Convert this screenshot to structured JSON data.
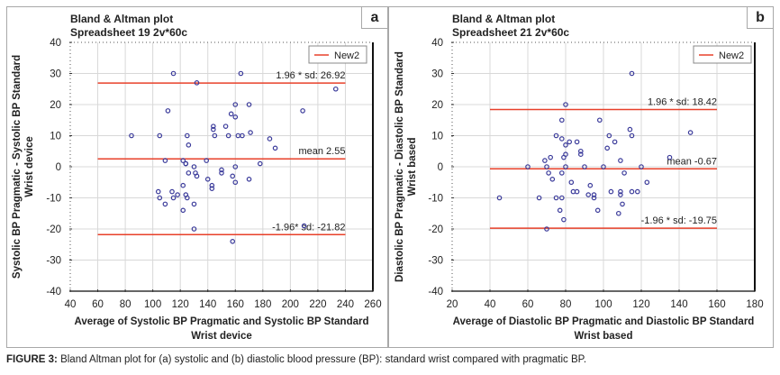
{
  "caption": {
    "label": "FIGURE 3:",
    "text": " Bland Altman plot for (a) systolic and (b) diastolic blood pressure (BP): standard wrist compared with pragmatic BP."
  },
  "chart_data": [
    {
      "type": "scatter",
      "panel_letter": "a",
      "title": "Bland & Altman plot",
      "subtitle": "Spreadsheet 19 2v*60c",
      "xlabel": "Average of Systolic BP Pragmatic and Systolic BP Standard",
      "xlabel2": "Wrist device",
      "ylabel": "Systolic BP Pragmatic - Systolic BP Standard",
      "ylabel2": "Wrist device",
      "xlim": [
        40,
        260
      ],
      "ylim": [
        -40,
        40
      ],
      "xticks": [
        40,
        60,
        80,
        100,
        120,
        140,
        160,
        180,
        200,
        220,
        240,
        260
      ],
      "yticks": [
        -40,
        -30,
        -20,
        -10,
        0,
        10,
        20,
        30,
        40
      ],
      "grid": true,
      "legend": {
        "entries": [
          "New2"
        ],
        "placement": "top-right"
      },
      "line_x_range": [
        60,
        240
      ],
      "reference_lines": [
        {
          "name": "upper-limit",
          "y": 26.92,
          "label": "1.96 * sd: 26.92"
        },
        {
          "name": "mean",
          "y": 2.55,
          "label": "mean 2.55"
        },
        {
          "name": "lower-limit",
          "y": -21.82,
          "label": "-1.96* sd: -21.82"
        }
      ],
      "points": [
        [
          84.5,
          10
        ],
        [
          105,
          10
        ],
        [
          109,
          2
        ],
        [
          104,
          -8
        ],
        [
          105,
          -10
        ],
        [
          109,
          -12
        ],
        [
          114,
          -8
        ],
        [
          115,
          -10
        ],
        [
          118,
          -9
        ],
        [
          122,
          -14
        ],
        [
          122,
          2
        ],
        [
          124,
          1
        ],
        [
          124,
          1
        ],
        [
          122,
          -6
        ],
        [
          124,
          -9
        ],
        [
          125,
          -10
        ],
        [
          125,
          10
        ],
        [
          126,
          7
        ],
        [
          126,
          -2
        ],
        [
          130,
          0
        ],
        [
          130,
          -12
        ],
        [
          130,
          -20
        ],
        [
          131,
          -2
        ],
        [
          132,
          -3
        ],
        [
          139,
          2
        ],
        [
          140,
          -4
        ],
        [
          143,
          -6
        ],
        [
          143,
          -7
        ],
        [
          144,
          13
        ],
        [
          144,
          12
        ],
        [
          145,
          10
        ],
        [
          150,
          -1
        ],
        [
          150,
          -2
        ],
        [
          153,
          13
        ],
        [
          155,
          10
        ],
        [
          158,
          -3
        ],
        [
          160,
          -5
        ],
        [
          160,
          0
        ],
        [
          162,
          10
        ],
        [
          165,
          10
        ],
        [
          171,
          11
        ],
        [
          170,
          -4
        ],
        [
          178,
          1
        ],
        [
          185,
          9
        ],
        [
          189,
          6
        ],
        [
          158,
          -24
        ],
        [
          210,
          -19
        ],
        [
          115,
          30
        ],
        [
          111,
          18
        ],
        [
          132,
          27
        ],
        [
          164,
          30
        ],
        [
          160,
          20
        ],
        [
          170,
          20
        ],
        [
          157,
          17
        ],
        [
          160,
          16
        ],
        [
          209,
          18
        ],
        [
          233,
          25
        ]
      ],
      "colors": {
        "line": "#e8402a",
        "point": "#3a3a9a",
        "grid": "#d8d8d8"
      }
    },
    {
      "type": "scatter",
      "panel_letter": "b",
      "title": "Bland & Altman plot",
      "subtitle": "Spreadsheet 21 2v*60c",
      "xlabel": "Average of Diastolic BP Pragmatic and Diastolic BP Standard",
      "xlabel2": "Wrist based",
      "ylabel": "Diastolic BP Pragmatic - Diastolic BP Standard",
      "ylabel2": "Wrist based",
      "xlim": [
        20,
        180
      ],
      "ylim": [
        -40,
        40
      ],
      "xticks": [
        20,
        40,
        60,
        80,
        100,
        120,
        140,
        160,
        180
      ],
      "yticks": [
        -40,
        -30,
        -20,
        -10,
        0,
        10,
        20,
        30,
        40
      ],
      "grid": true,
      "legend": {
        "entries": [
          "New2"
        ],
        "placement": "top-right"
      },
      "line_x_range": [
        40,
        160
      ],
      "reference_lines": [
        {
          "name": "upper-limit",
          "y": 18.42,
          "label": "1.96 * sd: 18.42"
        },
        {
          "name": "mean",
          "y": -0.67,
          "label": "mean -0.67"
        },
        {
          "name": "lower-limit",
          "y": -19.75,
          "label": "-1.96 * sd: -19.75"
        }
      ],
      "points": [
        [
          45,
          -10
        ],
        [
          60,
          0
        ],
        [
          66,
          -10
        ],
        [
          69,
          2
        ],
        [
          70,
          0
        ],
        [
          71,
          -2
        ],
        [
          72,
          3
        ],
        [
          73,
          -4
        ],
        [
          70,
          -20
        ],
        [
          75,
          10
        ],
        [
          75,
          -10
        ],
        [
          77,
          -14
        ],
        [
          78,
          9
        ],
        [
          78,
          -10
        ],
        [
          78,
          -2
        ],
        [
          78,
          15
        ],
        [
          79,
          -17
        ],
        [
          79,
          3
        ],
        [
          80,
          7
        ],
        [
          80,
          4
        ],
        [
          80,
          0
        ],
        [
          80,
          20
        ],
        [
          82,
          8
        ],
        [
          83,
          -5
        ],
        [
          84,
          -8
        ],
        [
          86,
          -8
        ],
        [
          86,
          8
        ],
        [
          88,
          5
        ],
        [
          88,
          4
        ],
        [
          90,
          0
        ],
        [
          92,
          -9
        ],
        [
          93,
          -6
        ],
        [
          95,
          -9
        ],
        [
          95,
          -10
        ],
        [
          97,
          -14
        ],
        [
          98,
          15
        ],
        [
          100,
          0
        ],
        [
          102,
          6
        ],
        [
          103,
          10
        ],
        [
          104,
          -8
        ],
        [
          106,
          8
        ],
        [
          108,
          -15
        ],
        [
          109,
          -9
        ],
        [
          109,
          -8
        ],
        [
          109,
          2
        ],
        [
          110,
          -12
        ],
        [
          111,
          -2
        ],
        [
          114,
          12
        ],
        [
          115,
          -8
        ],
        [
          115,
          10
        ],
        [
          115,
          30
        ],
        [
          118,
          -8
        ],
        [
          120,
          0
        ],
        [
          123,
          -5
        ],
        [
          135,
          3
        ],
        [
          146,
          11
        ]
      ],
      "colors": {
        "line": "#e8402a",
        "point": "#3a3a9a",
        "grid": "#d8d8d8"
      }
    }
  ]
}
